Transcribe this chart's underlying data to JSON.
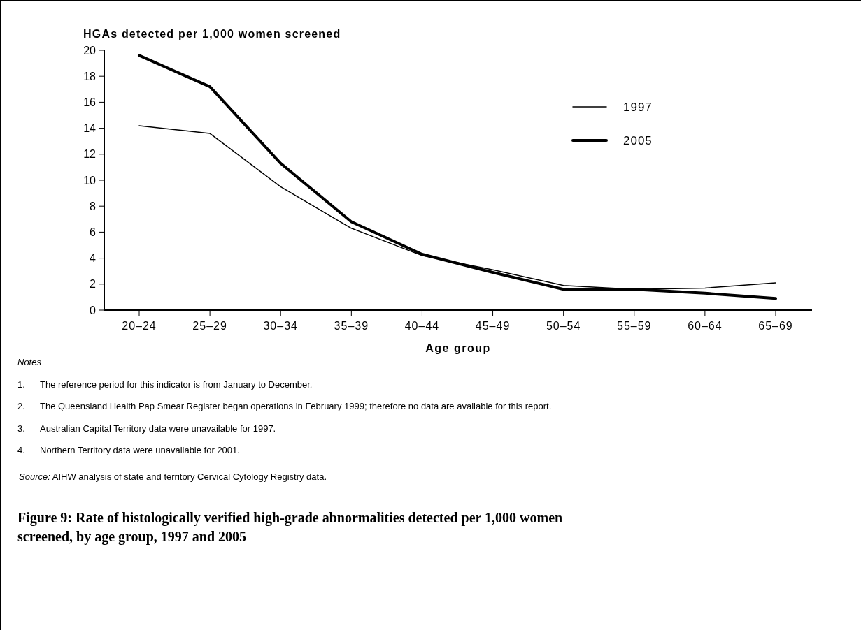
{
  "chart_data": {
    "type": "line",
    "title": "Figure 9: Rate of histologically verified high-grade abnormalities detected per 1,000 women screened, by age group,  1997 and 2005",
    "ylabel": "HGAs detected per 1,000 women screened",
    "xlabel": "Age group",
    "categories": [
      "20–24",
      "25–29",
      "30–34",
      "35–39",
      "40–44",
      "45–49",
      "50–54",
      "55–59",
      "60–64",
      "65–69"
    ],
    "series": [
      {
        "name": "1997",
        "color": "#000000",
        "values": [
          14.2,
          13.6,
          9.5,
          6.3,
          4.2,
          3.1,
          1.9,
          1.6,
          1.7,
          2.1
        ]
      },
      {
        "name": "2005",
        "color": "#000000",
        "values": [
          19.6,
          17.2,
          11.3,
          6.8,
          4.3,
          2.9,
          1.6,
          1.6,
          1.3,
          0.9
        ]
      }
    ],
    "ylim": [
      0,
      20
    ],
    "yticks": [
      0,
      2,
      4,
      6,
      8,
      10,
      12,
      14,
      16,
      18,
      20
    ],
    "grid": false,
    "legend": "top right",
    "marker": "none",
    "line_style": "solid",
    "annotations": [
      "Notes",
      "1.\tThe reference period for this indicator is from January to December.",
      "2.\tThe Queensland Health Pap Smear Register began operations in February 1999; therefore no data are available for this report.",
      "3.\tAustralian Capital Territory data were unavailable for 1997.",
      "4.\tNorthern Territory data were unavailable for 2001.",
      "Source: AIHW analysis of state and territory Cervical Cytology Registry data."
    ]
  }
}
